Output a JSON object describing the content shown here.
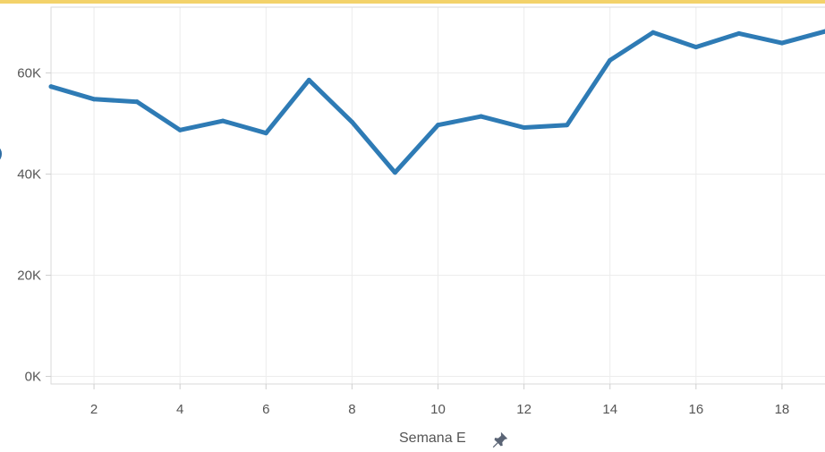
{
  "chart_data": {
    "type": "line",
    "x": [
      1,
      2,
      3,
      4,
      5,
      6,
      7,
      8,
      9,
      10,
      11,
      12,
      13,
      14,
      15,
      16,
      17,
      18,
      19
    ],
    "series": [
      {
        "values": [
          57300,
          54800,
          54300,
          48700,
          50500,
          48100,
          58600,
          50300,
          40300,
          49700,
          51400,
          49200,
          49700,
          62500,
          68000,
          65100,
          67800,
          65900,
          68200
        ]
      }
    ],
    "xlabel": "Semana E",
    "ylabel": "",
    "xlim": [
      1,
      19
    ],
    "ylim": [
      -1500,
      73000
    ],
    "x_ticks": [
      "2",
      "4",
      "6",
      "8",
      "10",
      "12",
      "14",
      "16",
      "18"
    ],
    "y_ticks": [
      "0K",
      "20K",
      "40K",
      "60K"
    ],
    "grid": true,
    "line_color": "#2e7bb5"
  },
  "pin_icon": "pin-icon"
}
